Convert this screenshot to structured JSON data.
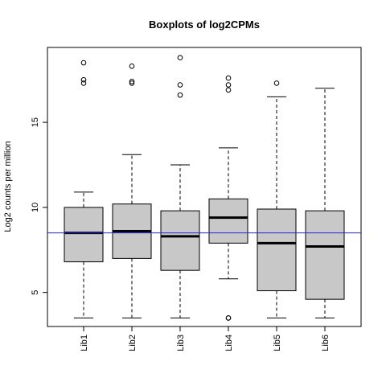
{
  "chart_data": {
    "type": "boxplot",
    "title": "Boxplots of log2CPMs",
    "ylabel": "Log2 counts per million",
    "xlabel": "",
    "ylim": [
      3.0,
      19.4
    ],
    "yticks": [
      5,
      10,
      15
    ],
    "grid": false,
    "categories": [
      "Lib1",
      "Lib2",
      "Lib3",
      "Lib4",
      "Lib5",
      "Lib6"
    ],
    "boxes": [
      {
        "whisker_low": 3.5,
        "q1": 6.8,
        "median": 8.5,
        "q3": 10.0,
        "whisker_high": 10.9,
        "outliers": [
          17.3,
          17.5,
          18.5
        ]
      },
      {
        "whisker_low": 3.5,
        "q1": 7.0,
        "median": 8.6,
        "q3": 10.2,
        "whisker_high": 13.1,
        "outliers": [
          17.3,
          17.4,
          18.3
        ]
      },
      {
        "whisker_low": 3.5,
        "q1": 6.3,
        "median": 8.3,
        "q3": 9.8,
        "whisker_high": 12.5,
        "outliers": [
          16.6,
          17.2,
          18.8
        ]
      },
      {
        "whisker_low": 5.8,
        "q1": 7.9,
        "median": 9.4,
        "q3": 10.5,
        "whisker_high": 13.5,
        "outliers": [
          3.5,
          3.5,
          16.9,
          17.2,
          17.6
        ]
      },
      {
        "whisker_low": 3.5,
        "q1": 5.1,
        "median": 7.9,
        "q3": 9.9,
        "whisker_high": 16.5,
        "outliers": [
          17.3
        ]
      },
      {
        "whisker_low": 3.5,
        "q1": 4.6,
        "median": 7.7,
        "q3": 9.8,
        "whisker_high": 17.0,
        "outliers": []
      }
    ],
    "reference_line": {
      "y": 8.5,
      "color": "#2222dd"
    },
    "colors": {
      "box_fill": "#c8c8c8",
      "stroke": "#000000",
      "median": "#000000"
    }
  }
}
